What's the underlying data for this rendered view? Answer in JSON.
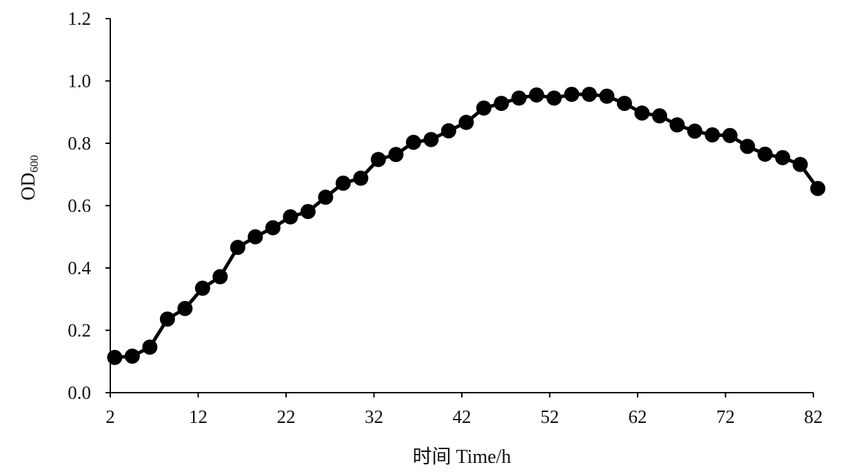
{
  "chart_data": {
    "type": "line",
    "title": "",
    "xlabel": "时间 Time/h",
    "ylabel": {
      "main": "OD",
      "sub": "600"
    },
    "xlim": [
      2,
      82
    ],
    "ylim": [
      0,
      1.2
    ],
    "x_ticks": [
      "2",
      "12",
      "22",
      "32",
      "42",
      "52",
      "62",
      "72",
      "82"
    ],
    "y_ticks": [
      "0.0",
      "0.2",
      "0.4",
      "0.6",
      "0.8",
      "1.0",
      "1.2"
    ],
    "grid": false,
    "legend": "none",
    "series": [
      {
        "color": "#000000",
        "x": [
          2.5,
          4.5,
          6.5,
          8.5,
          10.5,
          12.5,
          14.5,
          16.5,
          18.5,
          20.5,
          22.5,
          24.5,
          26.5,
          28.5,
          30.5,
          32.5,
          34.5,
          36.5,
          38.5,
          40.5,
          42.5,
          44.5,
          46.5,
          48.5,
          50.5,
          52.5,
          54.5,
          56.5,
          58.5,
          60.5,
          62.5,
          64.5,
          66.5,
          68.5,
          70.5,
          72.5,
          74.5,
          76.5,
          78.5,
          80.5,
          82.5
        ],
        "values": [
          0.113,
          0.117,
          0.146,
          0.236,
          0.27,
          0.335,
          0.372,
          0.466,
          0.5,
          0.529,
          0.564,
          0.581,
          0.627,
          0.672,
          0.688,
          0.748,
          0.764,
          0.803,
          0.812,
          0.84,
          0.867,
          0.913,
          0.928,
          0.945,
          0.955,
          0.945,
          0.957,
          0.957,
          0.951,
          0.928,
          0.897,
          0.888,
          0.859,
          0.839,
          0.827,
          0.825,
          0.79,
          0.765,
          0.754,
          0.732,
          0.655
        ]
      }
    ]
  }
}
